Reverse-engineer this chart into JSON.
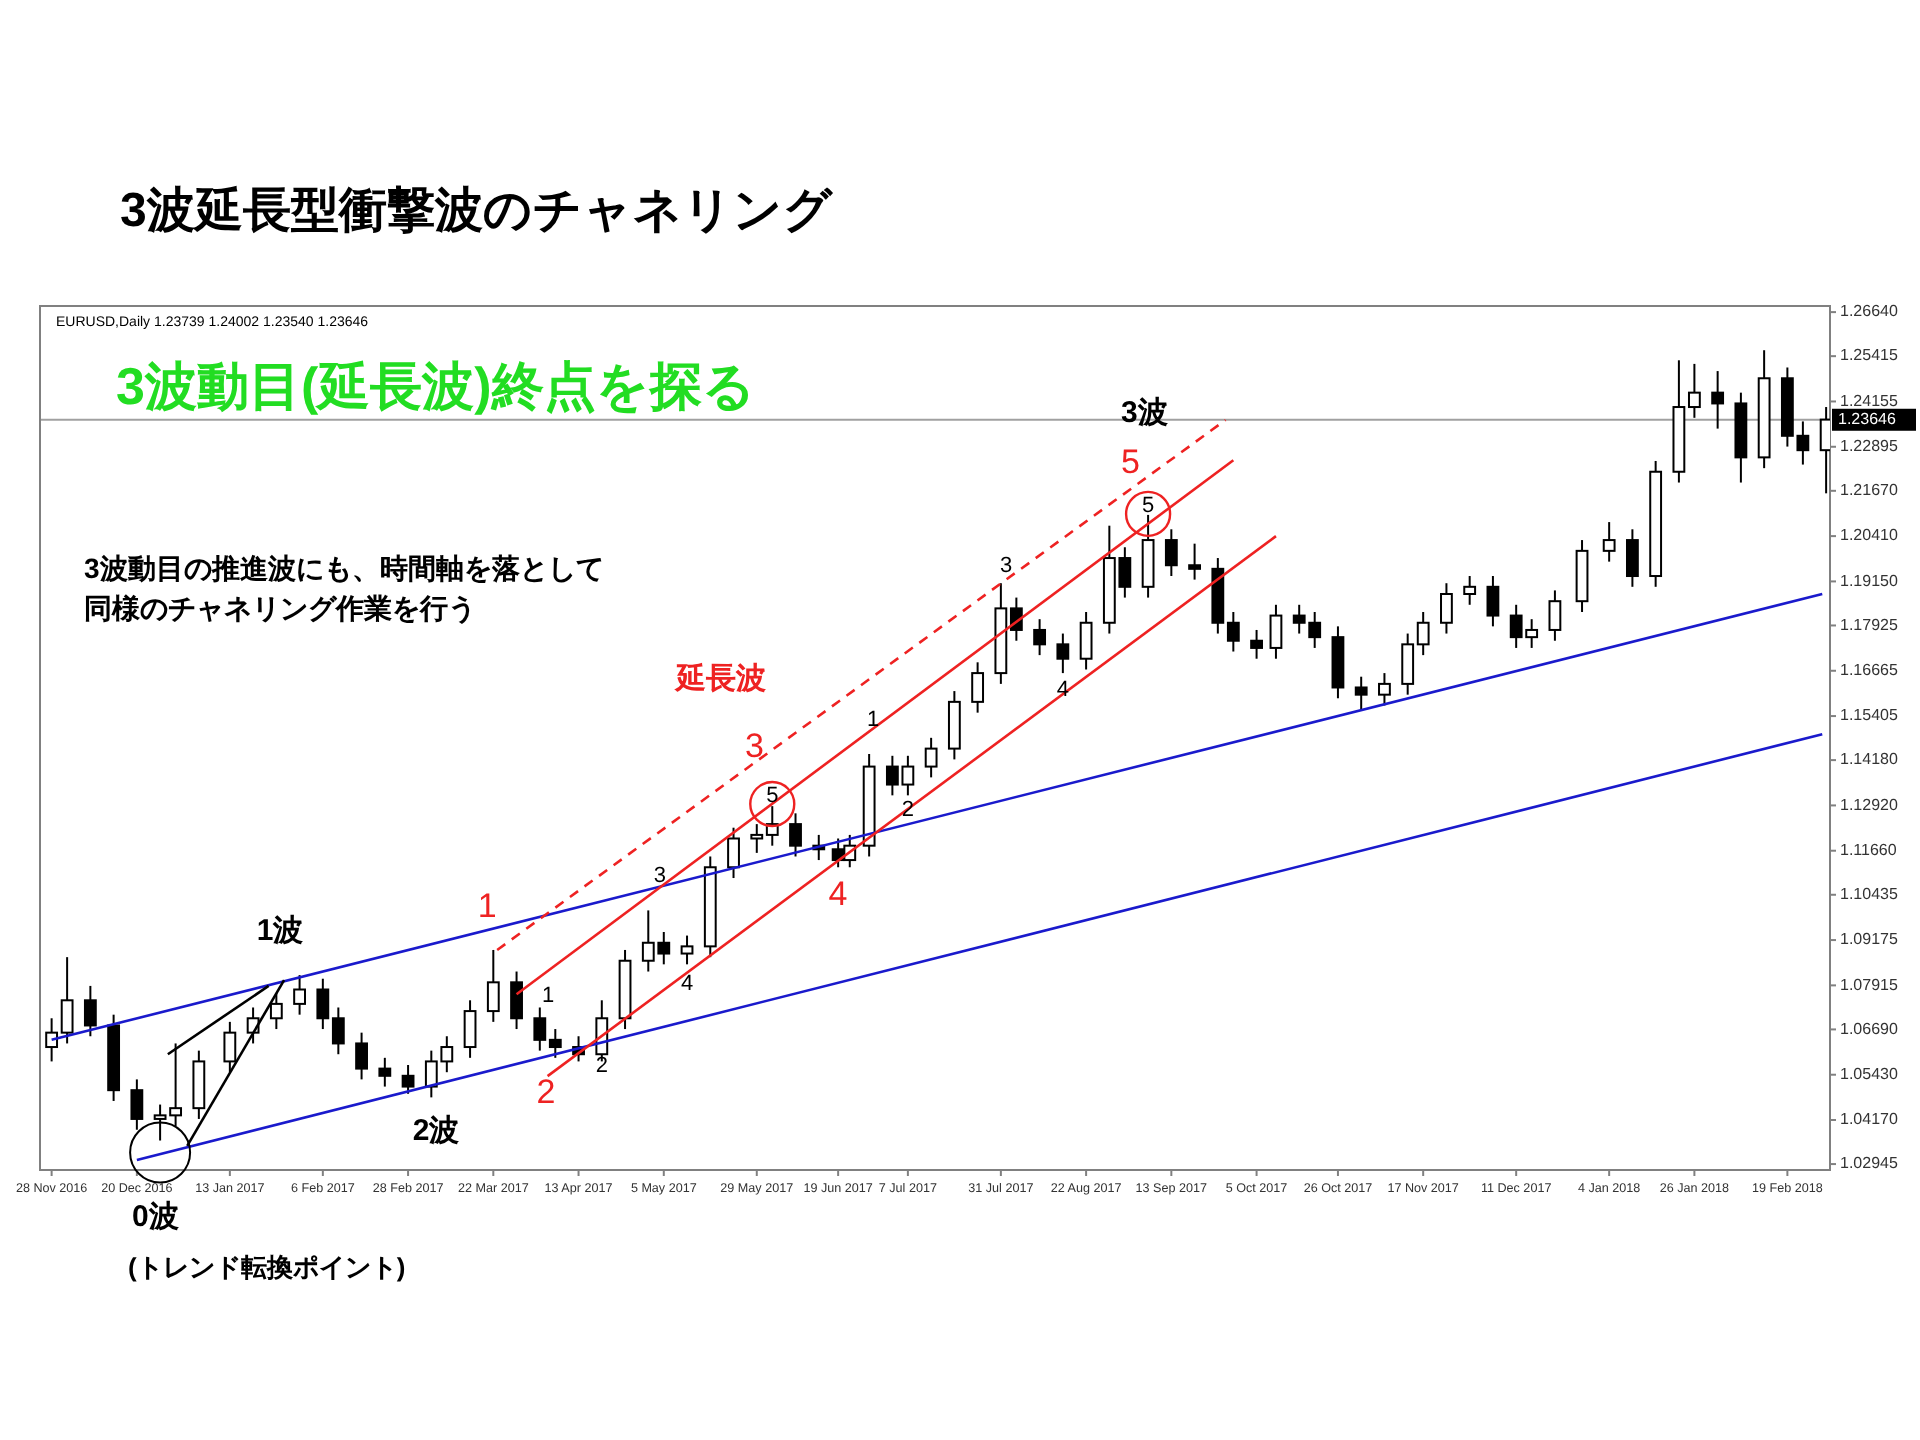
{
  "chart_data": {
    "type": "candlestick",
    "title": "3波延長型衝撃波のチャネリング",
    "xlim": [
      "2016-11-25",
      "2018-03-02"
    ],
    "ylim": [
      1.0278,
      1.2681
    ],
    "xticks": [
      {
        "value": "2016-11-28",
        "label": "28 Nov 2016"
      },
      {
        "value": "2016-12-20",
        "label": "20 Dec 2016"
      },
      {
        "value": "2017-01-13",
        "label": "13 Jan 2017"
      },
      {
        "value": "2017-02-06",
        "label": "6 Feb 2017"
      },
      {
        "value": "2017-02-28",
        "label": "28 Feb 2017"
      },
      {
        "value": "2017-03-22",
        "label": "22 Mar 2017"
      },
      {
        "value": "2017-04-13",
        "label": "13 Apr 2017"
      },
      {
        "value": "2017-05-05",
        "label": "5 May 2017"
      },
      {
        "value": "2017-05-29",
        "label": "29 May 2017"
      },
      {
        "value": "2017-06-19",
        "label": "19 Jun 2017"
      },
      {
        "value": "2017-07-07",
        "label": "7 Jul 2017"
      },
      {
        "value": "2017-07-31",
        "label": "31 Jul 2017"
      },
      {
        "value": "2017-08-22",
        "label": "22 Aug 2017"
      },
      {
        "value": "2017-09-13",
        "label": "13 Sep 2017"
      },
      {
        "value": "2017-10-05",
        "label": "5 Oct 2017"
      },
      {
        "value": "2017-10-26",
        "label": "26 Oct 2017"
      },
      {
        "value": "2017-11-17",
        "label": "17 Nov 2017"
      },
      {
        "value": "2017-12-11",
        "label": "11 Dec 2017"
      },
      {
        "value": "2018-01-04",
        "label": "4 Jan 2018"
      },
      {
        "value": "2018-01-26",
        "label": "26 Jan 2018"
      },
      {
        "value": "2018-02-19",
        "label": "19 Feb 2018"
      }
    ],
    "yticks": [
      {
        "value": 1.2664,
        "label": "1.26640"
      },
      1.25415,
      1.24155,
      1.22895,
      {
        "value": 1.2167,
        "label": "1.21670"
      },
      {
        "value": 1.2041,
        "label": "1.20410"
      },
      {
        "value": 1.1915,
        "label": "1.19150"
      },
      1.17925,
      1.16665,
      1.15405,
      {
        "value": 1.1418,
        "label": "1.14180"
      },
      {
        "value": 1.1292,
        "label": "1.12920"
      },
      {
        "value": 1.1166,
        "label": "1.11660"
      },
      1.10435,
      1.09175,
      1.07915,
      {
        "value": 1.0669,
        "label": "1.06690"
      },
      {
        "value": 1.0543,
        "label": "1.05430"
      },
      {
        "value": 1.0417,
        "label": "1.04170"
      },
      1.02945
    ],
    "ref_lines": [
      {
        "axis": "y",
        "value": 1.23646,
        "label": "1.23646",
        "color": "#a0a0a0"
      }
    ],
    "series": [
      {
        "color": "#000000",
        "x": [
          "2016-11-28",
          "2016-12-02",
          "2016-12-08",
          "2016-12-14",
          "2016-12-20",
          "2016-12-26",
          "2016-12-30",
          "2017-01-05",
          "2017-01-13",
          "2017-01-19",
          "2017-01-25",
          "2017-01-31",
          "2017-02-06",
          "2017-02-10",
          "2017-02-16",
          "2017-02-22",
          "2017-02-28",
          "2017-03-06",
          "2017-03-10",
          "2017-03-16",
          "2017-03-22",
          "2017-03-28",
          "2017-04-03",
          "2017-04-07",
          "2017-04-13",
          "2017-04-19",
          "2017-04-25",
          "2017-05-01",
          "2017-05-05",
          "2017-05-11",
          "2017-05-17",
          "2017-05-23",
          "2017-05-29",
          "2017-06-02",
          "2017-06-08",
          "2017-06-14",
          "2017-06-19",
          "2017-06-22",
          "2017-06-27",
          "2017-07-03",
          "2017-07-07",
          "2017-07-13",
          "2017-07-19",
          "2017-07-25",
          "2017-07-31",
          "2017-08-04",
          "2017-08-10",
          "2017-08-16",
          "2017-08-22",
          "2017-08-28",
          "2017-09-01",
          "2017-09-07",
          "2017-09-13",
          "2017-09-19",
          "2017-09-25",
          "2017-09-29",
          "2017-10-05",
          "2017-10-10",
          "2017-10-16",
          "2017-10-20",
          "2017-10-26",
          "2017-11-01",
          "2017-11-07",
          "2017-11-13",
          "2017-11-17",
          "2017-11-23",
          "2017-11-29",
          "2017-12-05",
          "2017-12-11",
          "2017-12-15",
          "2017-12-21",
          "2017-12-28",
          "2018-01-04",
          "2018-01-10",
          "2018-01-16",
          "2018-01-22",
          "2018-01-26",
          "2018-02-01",
          "2018-02-07",
          "2018-02-13",
          "2018-02-19",
          "2018-02-23",
          "2018-03-01"
        ],
        "ohlc": [
          [
            1.062,
            1.07,
            1.058,
            1.066
          ],
          [
            1.066,
            1.087,
            1.063,
            1.075
          ],
          [
            1.075,
            1.079,
            1.065,
            1.068
          ],
          [
            1.068,
            1.071,
            1.047,
            1.05
          ],
          [
            1.05,
            1.053,
            1.039,
            1.042
          ],
          [
            1.042,
            1.046,
            1.036,
            1.043
          ],
          [
            1.043,
            1.063,
            1.04,
            1.045
          ],
          [
            1.045,
            1.061,
            1.042,
            1.058
          ],
          [
            1.058,
            1.069,
            1.055,
            1.066
          ],
          [
            1.066,
            1.073,
            1.063,
            1.07
          ],
          [
            1.07,
            1.077,
            1.067,
            1.074
          ],
          [
            1.074,
            1.082,
            1.071,
            1.078
          ],
          [
            1.078,
            1.081,
            1.067,
            1.07
          ],
          [
            1.07,
            1.073,
            1.06,
            1.063
          ],
          [
            1.063,
            1.066,
            1.053,
            1.056
          ],
          [
            1.056,
            1.059,
            1.051,
            1.054
          ],
          [
            1.054,
            1.057,
            1.049,
            1.051
          ],
          [
            1.051,
            1.061,
            1.048,
            1.058
          ],
          [
            1.058,
            1.065,
            1.055,
            1.062
          ],
          [
            1.062,
            1.075,
            1.059,
            1.072
          ],
          [
            1.072,
            1.089,
            1.069,
            1.08
          ],
          [
            1.08,
            1.083,
            1.067,
            1.07
          ],
          [
            1.07,
            1.073,
            1.061,
            1.064
          ],
          [
            1.064,
            1.067,
            1.059,
            1.062
          ],
          [
            1.062,
            1.065,
            1.058,
            1.06
          ],
          [
            1.06,
            1.075,
            1.058,
            1.07
          ],
          [
            1.07,
            1.089,
            1.067,
            1.086
          ],
          [
            1.086,
            1.1,
            1.083,
            1.091
          ],
          [
            1.091,
            1.094,
            1.085,
            1.088
          ],
          [
            1.088,
            1.093,
            1.085,
            1.09
          ],
          [
            1.09,
            1.115,
            1.087,
            1.112
          ],
          [
            1.112,
            1.123,
            1.109,
            1.12
          ],
          [
            1.12,
            1.124,
            1.116,
            1.121
          ],
          [
            1.121,
            1.129,
            1.118,
            1.124
          ],
          [
            1.124,
            1.127,
            1.115,
            1.118
          ],
          [
            1.118,
            1.121,
            1.114,
            1.117
          ],
          [
            1.117,
            1.12,
            1.112,
            1.114
          ],
          [
            1.114,
            1.121,
            1.112,
            1.118
          ],
          [
            1.118,
            1.1435,
            1.115,
            1.14
          ],
          [
            1.14,
            1.143,
            1.132,
            1.135
          ],
          [
            1.135,
            1.143,
            1.132,
            1.14
          ],
          [
            1.14,
            1.148,
            1.137,
            1.145
          ],
          [
            1.145,
            1.161,
            1.142,
            1.158
          ],
          [
            1.158,
            1.169,
            1.155,
            1.166
          ],
          [
            1.166,
            1.191,
            1.163,
            1.184
          ],
          [
            1.184,
            1.187,
            1.175,
            1.178
          ],
          [
            1.178,
            1.181,
            1.171,
            1.174
          ],
          [
            1.174,
            1.177,
            1.166,
            1.17
          ],
          [
            1.17,
            1.183,
            1.167,
            1.18
          ],
          [
            1.18,
            1.207,
            1.177,
            1.198
          ],
          [
            1.198,
            1.201,
            1.187,
            1.19
          ],
          [
            1.19,
            1.21,
            1.187,
            1.203
          ],
          [
            1.203,
            1.206,
            1.193,
            1.196
          ],
          [
            1.196,
            1.202,
            1.192,
            1.195
          ],
          [
            1.195,
            1.198,
            1.177,
            1.18
          ],
          [
            1.18,
            1.183,
            1.172,
            1.175
          ],
          [
            1.175,
            1.178,
            1.17,
            1.173
          ],
          [
            1.173,
            1.185,
            1.17,
            1.182
          ],
          [
            1.182,
            1.185,
            1.177,
            1.18
          ],
          [
            1.18,
            1.183,
            1.173,
            1.176
          ],
          [
            1.176,
            1.179,
            1.159,
            1.162
          ],
          [
            1.162,
            1.165,
            1.1557,
            1.16
          ],
          [
            1.16,
            1.166,
            1.157,
            1.163
          ],
          [
            1.163,
            1.177,
            1.16,
            1.174
          ],
          [
            1.174,
            1.183,
            1.171,
            1.18
          ],
          [
            1.18,
            1.191,
            1.177,
            1.188
          ],
          [
            1.188,
            1.193,
            1.185,
            1.19
          ],
          [
            1.19,
            1.193,
            1.179,
            1.182
          ],
          [
            1.182,
            1.185,
            1.173,
            1.176
          ],
          [
            1.176,
            1.181,
            1.173,
            1.178
          ],
          [
            1.178,
            1.189,
            1.175,
            1.186
          ],
          [
            1.186,
            1.203,
            1.183,
            1.2
          ],
          [
            1.2,
            1.208,
            1.197,
            1.203
          ],
          [
            1.203,
            1.206,
            1.19,
            1.193
          ],
          [
            1.193,
            1.225,
            1.19,
            1.222
          ],
          [
            1.222,
            1.253,
            1.219,
            1.24
          ],
          [
            1.24,
            1.252,
            1.237,
            1.244
          ],
          [
            1.244,
            1.25,
            1.234,
            1.241
          ],
          [
            1.241,
            1.244,
            1.219,
            1.226
          ],
          [
            1.226,
            1.2558,
            1.223,
            1.248
          ],
          [
            1.248,
            1.251,
            1.229,
            1.232
          ],
          [
            1.232,
            1.236,
            1.224,
            1.228
          ],
          [
            1.228,
            1.24,
            1.216,
            1.2365
          ]
        ]
      },
      {
        "type": "line",
        "color": "#1a1acc",
        "x": [
          "2016-11-28",
          "2018-02-28"
        ],
        "values": [
          1.064,
          1.188
        ]
      },
      {
        "type": "line",
        "color": "#1a1acc",
        "x": [
          "2016-12-20",
          "2018-02-28"
        ],
        "values": [
          1.0306,
          1.149
        ]
      },
      {
        "type": "line",
        "color": "#ee2222",
        "x": [
          "2017-04-05",
          "2017-10-10"
        ],
        "values": [
          1.0539,
          1.2041
        ]
      },
      {
        "type": "line",
        "color": "#ee2222",
        "x": [
          "2017-03-28",
          "2017-09-29"
        ],
        "values": [
          1.0767,
          1.2252
        ]
      },
      {
        "type": "line",
        "color": "#ee2222",
        "line_style": "dashed",
        "x": [
          "2017-03-23",
          "2017-09-27"
        ],
        "values": [
          1.089,
          1.2364
        ]
      },
      {
        "type": "line",
        "color": "#000000",
        "x": [
          "2016-12-28",
          "2017-01-23"
        ],
        "values": [
          1.06,
          1.079
        ]
      },
      {
        "type": "line",
        "color": "#000000",
        "x": [
          "2017-01-02",
          "2017-01-27"
        ],
        "values": [
          1.0345,
          1.0806
        ]
      }
    ],
    "annotations": [
      "EURUSD,Daily 1.23739 1.24002 1.23540 1.23646",
      "3波動目(延長波)終点を探る",
      "3波動目の推進波にも、時間軸を落として",
      "同様のチャネリング作業を行う",
      "延長波",
      "0波",
      "(トレンド転換ポイント)",
      "1波",
      "2波",
      "2",
      "4",
      "1",
      "3",
      {
        "text": "3波",
        "x": "2017-09-06",
        "y": 1.2381
      },
      {
        "text": "1",
        "x": "2017-03-23",
        "y": 1.0973
      },
      {
        "text": "3",
        "x": "2017-05-31",
        "y": 1.1418
      },
      {
        "text": "5",
        "x": "2017-09-05",
        "y": 1.2208
      },
      {
        "text": "2",
        "x": "2017-04-19",
        "y": 1.0567
      },
      {
        "text": "3",
        "x": "2017-05-04",
        "y": 1.1096
      },
      {
        "text": "4",
        "x": "2017-05-11",
        "y": 1.0795
      },
      {
        "text": "5",
        "x": "2017-06-02",
        "y": 1.1318
      },
      {
        "text": "1",
        "x": "2017-06-28",
        "y": 1.1529
      },
      {
        "text": "2",
        "x": "2017-07-07",
        "y": 1.1279
      },
      {
        "text": "4",
        "x": "2017-08-16",
        "y": 1.1613
      },
      {
        "text": "5",
        "x": "2017-09-07",
        "y": 1.2125
      }
    ]
  }
}
